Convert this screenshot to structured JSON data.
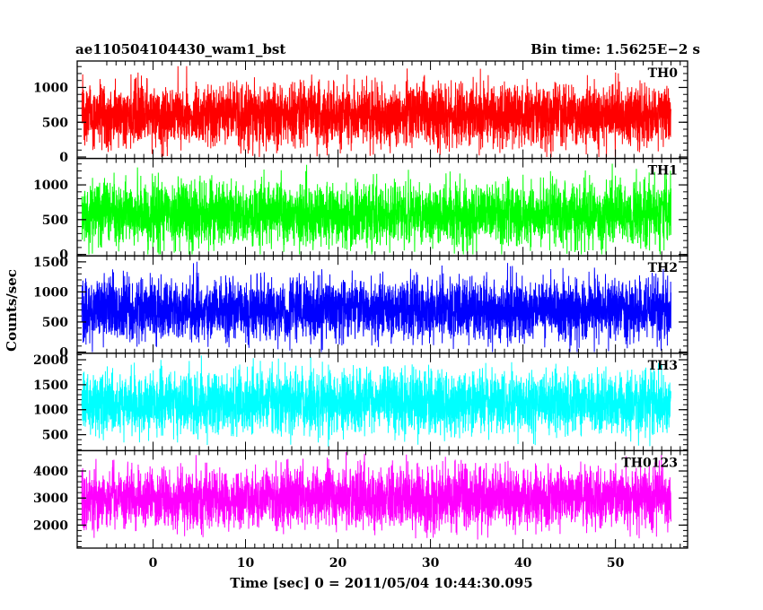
{
  "header": {
    "title": "ae110504104430_wam1_bst",
    "bin_time": "Bin time: 1.5625E−2 s"
  },
  "axes": {
    "ylabel": "Counts/sec",
    "xlabel": "Time [sec] 0 = 2011/05/04 10:44:30.095",
    "xlim": [
      -8.2,
      57.8
    ],
    "xticks": [
      "0",
      "10",
      "20",
      "30",
      "40",
      "50"
    ]
  },
  "chart_data": [
    {
      "type": "line",
      "name": "TH0",
      "color": "#ff0000",
      "x_range": [
        -7.7,
        56.0
      ],
      "ylim": [
        -20,
        1380
      ],
      "yticks": [
        "0",
        "500",
        "1000"
      ],
      "baseline": 600,
      "spread": 230,
      "clip_min": 0,
      "clip_max": 1350,
      "bins": 4076
    },
    {
      "type": "line",
      "name": "TH1",
      "color": "#00ff00",
      "x_range": [
        -7.7,
        56.0
      ],
      "ylim": [
        -20,
        1380
      ],
      "yticks": [
        "0",
        "500",
        "1000"
      ],
      "baseline": 580,
      "spread": 230,
      "clip_min": 0,
      "clip_max": 1350,
      "bins": 4076
    },
    {
      "type": "line",
      "name": "TH2",
      "color": "#0000ff",
      "x_range": [
        -7.7,
        56.0
      ],
      "ylim": [
        -20,
        1600
      ],
      "yticks": [
        "0",
        "500",
        "1000",
        "1500"
      ],
      "baseline": 700,
      "spread": 260,
      "clip_min": 0,
      "clip_max": 1560,
      "bins": 4076
    },
    {
      "type": "line",
      "name": "TH3",
      "color": "#00ffff",
      "x_range": [
        -7.7,
        56.0
      ],
      "ylim": [
        180,
        2130
      ],
      "yticks": [
        "500",
        "1000",
        "1500",
        "2000"
      ],
      "baseline": 1150,
      "spread": 320,
      "clip_min": 200,
      "clip_max": 2100,
      "bins": 4076
    },
    {
      "type": "line",
      "name": "TH0123",
      "color": "#ff00ff",
      "x_range": [
        -7.7,
        56.0
      ],
      "ylim": [
        1150,
        4750
      ],
      "yticks": [
        "2000",
        "3000",
        "4000"
      ],
      "baseline": 3000,
      "spread": 560,
      "clip_min": 1150,
      "clip_max": 4700,
      "bins": 4076
    }
  ]
}
